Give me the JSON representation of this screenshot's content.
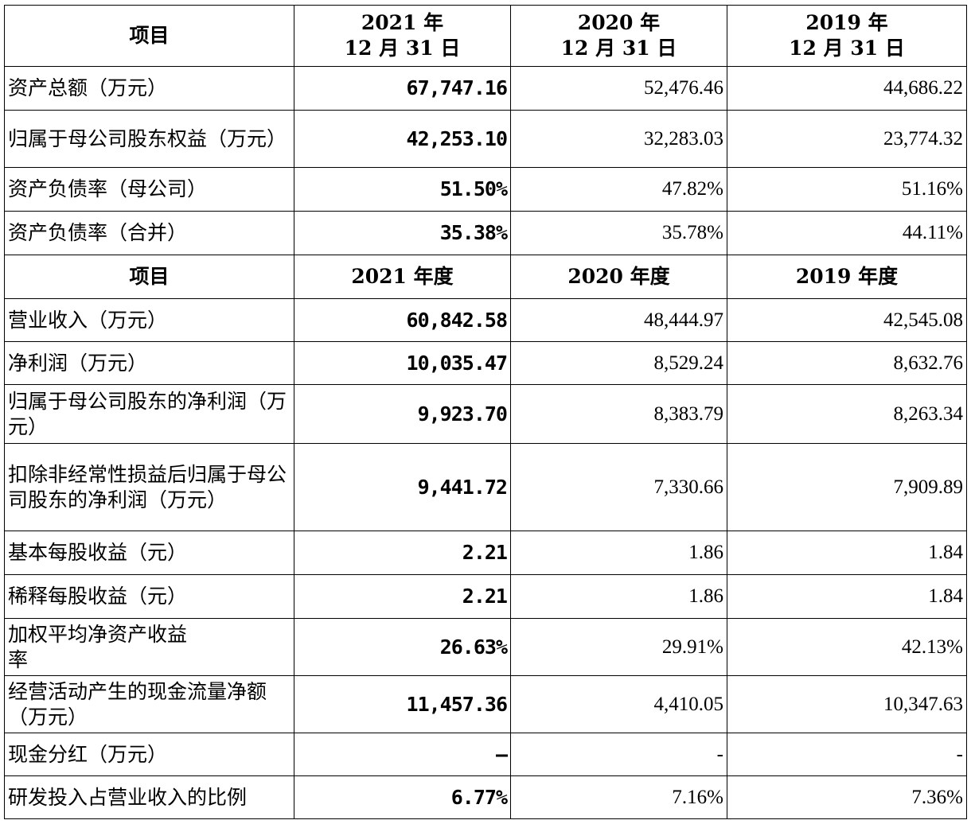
{
  "header1": {
    "item": "项目",
    "col2021": [
      "2021 年",
      "12 月 31 日"
    ],
    "col2020": [
      "2020 年",
      "12 月 31 日"
    ],
    "col2019": [
      "2019 年",
      "12 月 31 日"
    ]
  },
  "balance_rows": [
    {
      "label": "资产总额（万元）",
      "y2021": "67,747.16",
      "y2020": "52,476.46",
      "y2019": "44,686.22"
    },
    {
      "label": "归属于母公司股东权益（万元）",
      "y2021": "42,253.10",
      "y2020": "32,283.03",
      "y2019": "23,774.32"
    },
    {
      "label": "资产负债率（母公司）",
      "y2021": "51.50%",
      "y2020": "47.82%",
      "y2019": "51.16%"
    },
    {
      "label": "资产负债率（合并）",
      "y2021": "35.38%",
      "y2020": "35.78%",
      "y2019": "44.11%"
    }
  ],
  "header2": {
    "item": "项目",
    "col2021": "2021 年度",
    "col2020": "2020 年度",
    "col2019": "2019 年度"
  },
  "income_rows": [
    {
      "label": "营业收入（万元）",
      "y2021": "60,842.58",
      "y2020": "48,444.97",
      "y2019": "42,545.08"
    },
    {
      "label": "净利润（万元）",
      "y2021": "10,035.47",
      "y2020": "8,529.24",
      "y2019": "8,632.76"
    },
    {
      "label": "归属于母公司股东的净利润（万元）",
      "y2021": "9,923.70",
      "y2020": "8,383.79",
      "y2019": "8,263.34"
    },
    {
      "label": "扣除非经常性损益后归属于母公司股东的净利润（万元）",
      "y2021": "9,441.72",
      "y2020": "7,330.66",
      "y2019": "7,909.89"
    },
    {
      "label": "基本每股收益（元）",
      "y2021": "2.21",
      "y2020": "1.86",
      "y2019": "1.84"
    },
    {
      "label": "稀释每股收益（元）",
      "y2021": "2.21",
      "y2020": "1.86",
      "y2019": "1.84"
    },
    {
      "label": "加权平均净资产收益率",
      "y2021": "26.63%",
      "y2020": "29.91%",
      "y2019": "42.13%"
    },
    {
      "label": "经营活动产生的现金流量净额（万元）",
      "y2021": "11,457.36",
      "y2020": "4,410.05",
      "y2019": "10,347.63"
    },
    {
      "label": "现金分红（万元）",
      "y2021": "–",
      "y2020": "-",
      "y2019": "-"
    },
    {
      "label": "研发投入占营业收入的比例",
      "y2021": "6.77%",
      "y2020": "7.16%",
      "y2019": "7.36%"
    }
  ]
}
